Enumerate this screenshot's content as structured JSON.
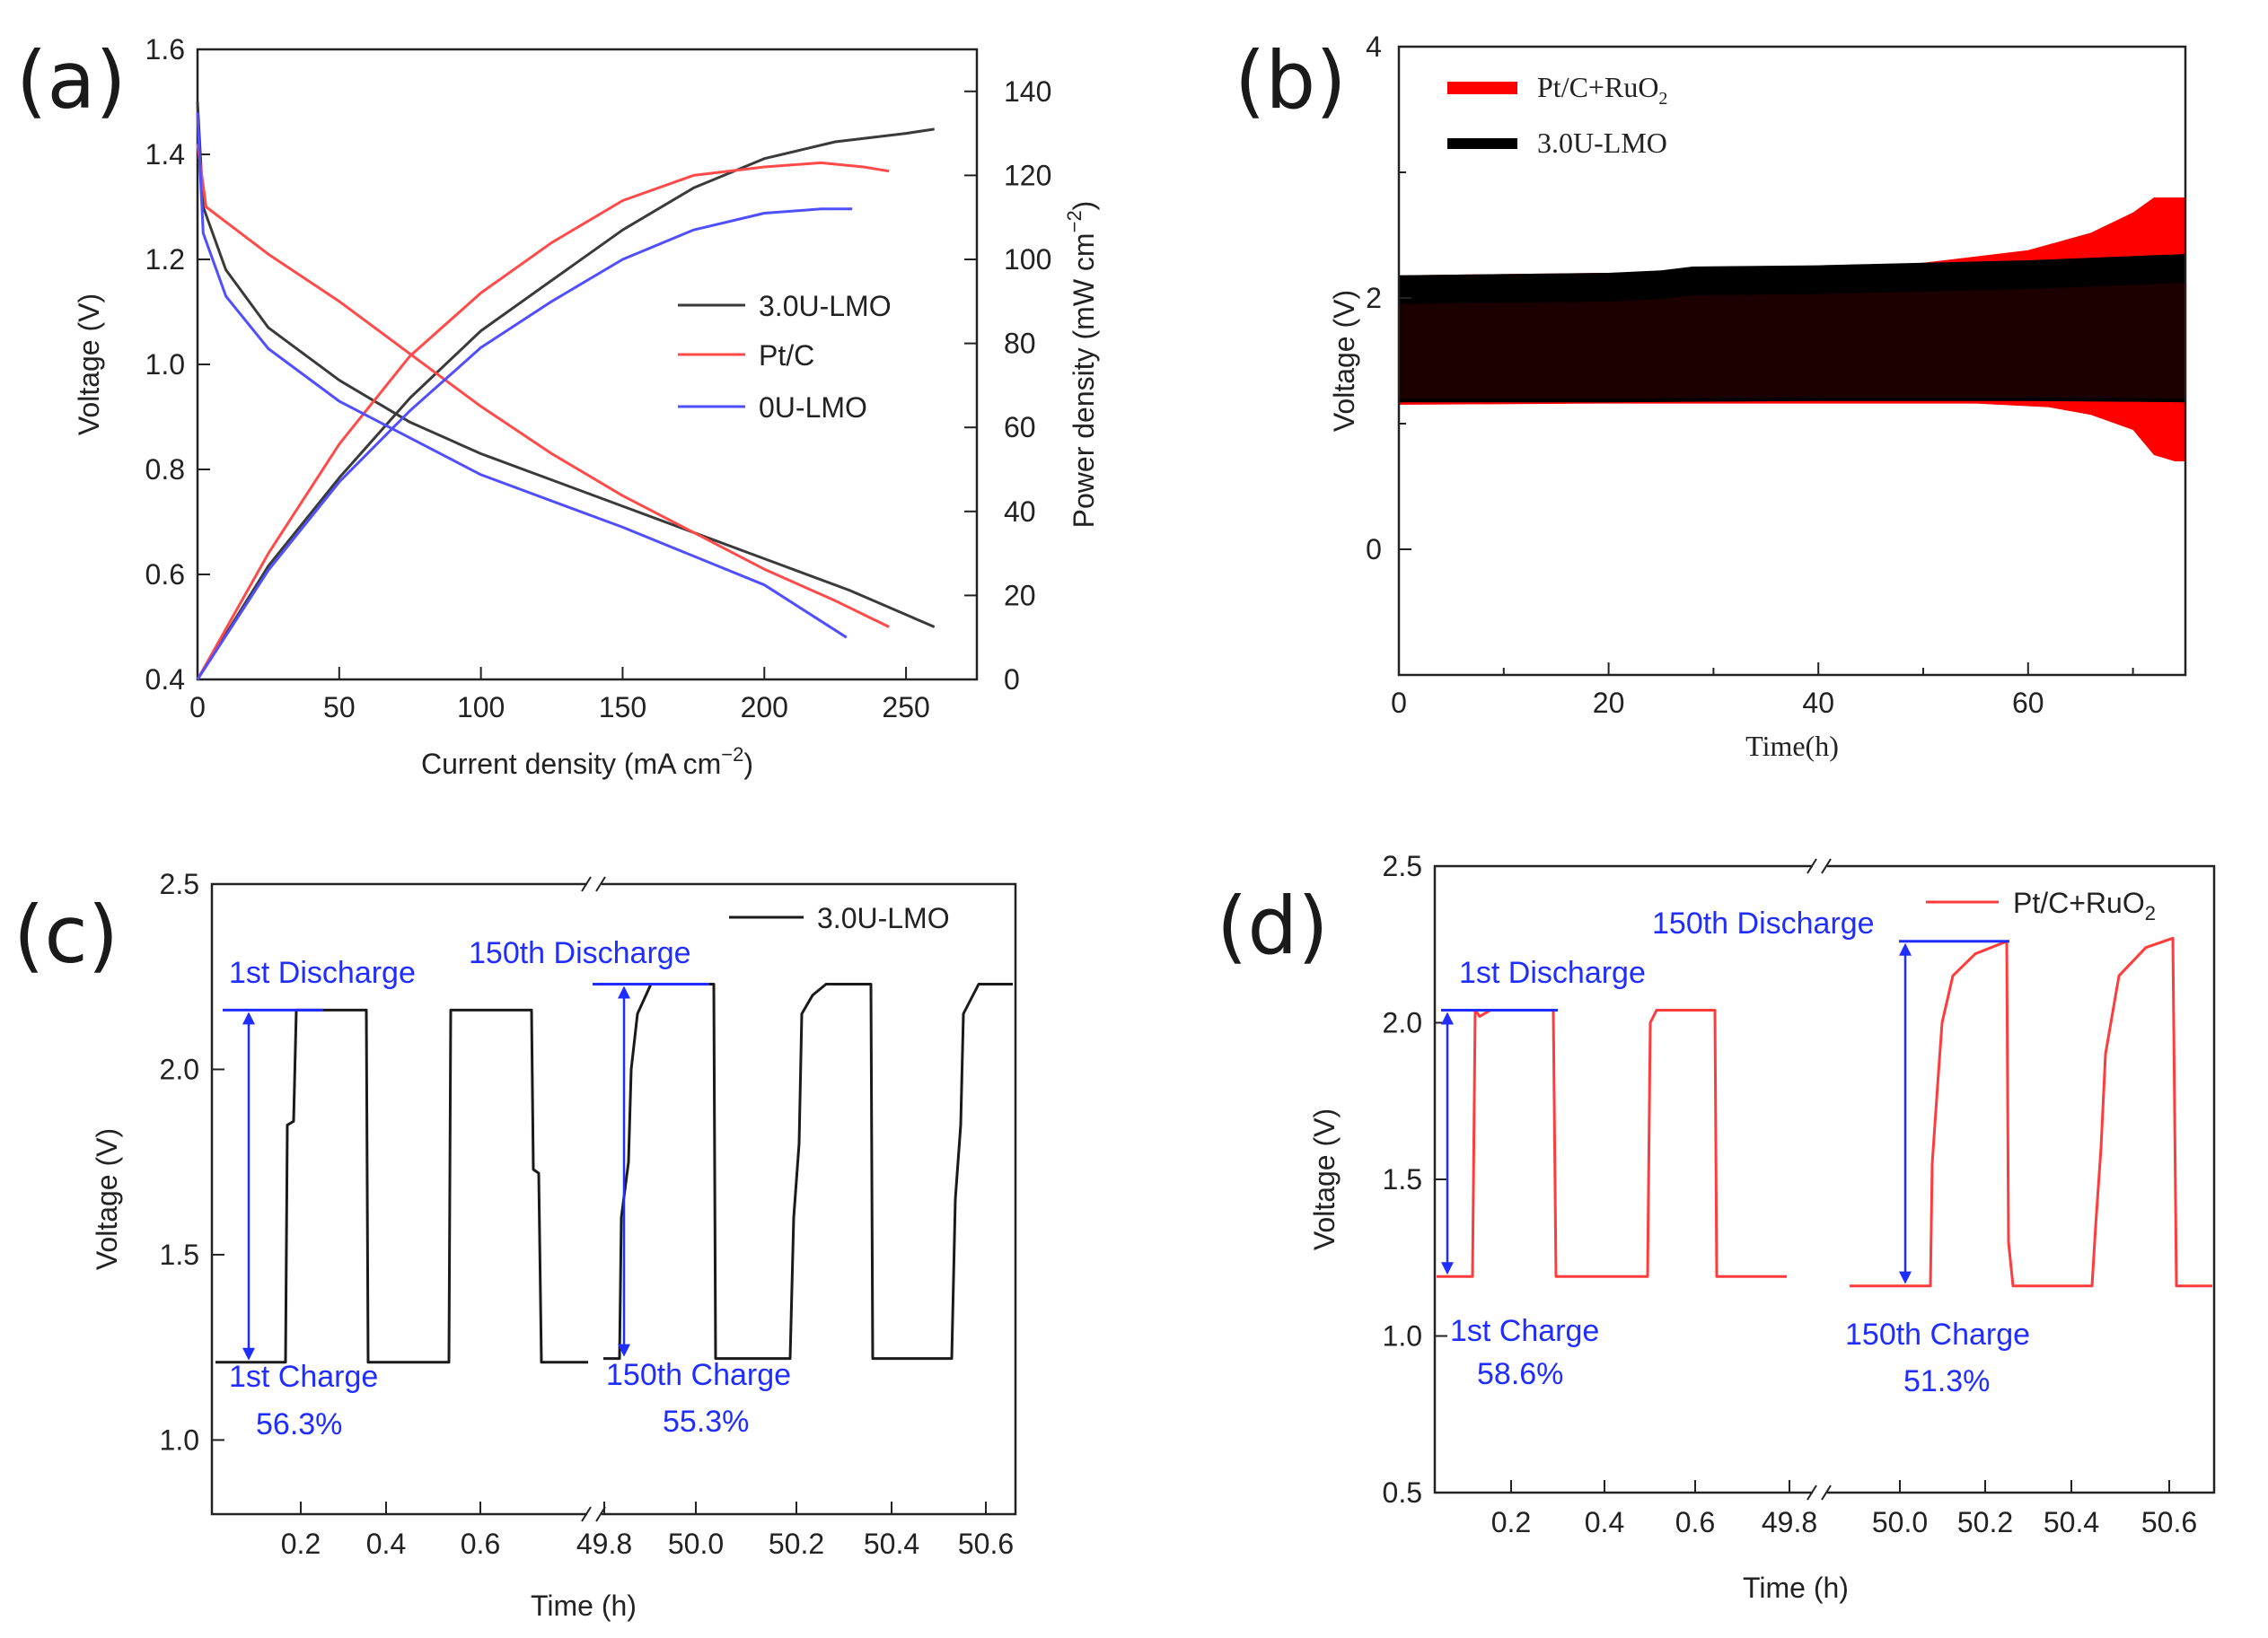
{
  "chart_data": [
    {
      "panel": "(a)",
      "type": "line",
      "xlabel": "Current density (mA cm",
      "xlabel_sup": "−2",
      "xlabel_end": ")",
      "ylabel": "Voltage (V)",
      "y2label": "Power density (mW cm",
      "y2label_sup": "−2",
      "y2label_end": ")",
      "xlim": [
        0,
        275
      ],
      "ylim": [
        0.4,
        1.6
      ],
      "y2lim": [
        0,
        150
      ],
      "xticks": [
        "0",
        "50",
        "100",
        "150",
        "200",
        "250"
      ],
      "yticks": [
        "0.4",
        "0.6",
        "0.8",
        "1.0",
        "1.2",
        "1.4",
        "1.6"
      ],
      "y2ticks": [
        "0",
        "20",
        "40",
        "60",
        "80",
        "100",
        "120",
        "140"
      ],
      "series": [
        {
          "name": "3.0U-LMO",
          "color": "#3a3a3a",
          "voltage": [
            [
              0,
              1.5
            ],
            [
              2,
              1.3
            ],
            [
              10,
              1.18
            ],
            [
              25,
              1.07
            ],
            [
              50,
              0.97
            ],
            [
              75,
              0.89
            ],
            [
              100,
              0.83
            ],
            [
              150,
              0.73
            ],
            [
              200,
              0.63
            ],
            [
              230,
              0.57
            ],
            [
              260,
              0.5
            ]
          ],
          "power": [
            [
              0,
              0
            ],
            [
              25,
              27
            ],
            [
              50,
              48
            ],
            [
              75,
              67
            ],
            [
              100,
              83
            ],
            [
              125,
              95
            ],
            [
              150,
              107
            ],
            [
              175,
              117
            ],
            [
              200,
              124
            ],
            [
              225,
              128
            ],
            [
              250,
              130
            ],
            [
              260,
              131
            ]
          ]
        },
        {
          "name": "Pt/C",
          "color": "#ff4a4a",
          "voltage": [
            [
              0,
              1.42
            ],
            [
              3,
              1.3
            ],
            [
              25,
              1.21
            ],
            [
              50,
              1.12
            ],
            [
              75,
              1.02
            ],
            [
              100,
              0.92
            ],
            [
              125,
              0.83
            ],
            [
              150,
              0.75
            ],
            [
              175,
              0.68
            ],
            [
              200,
              0.61
            ],
            [
              225,
              0.55
            ],
            [
              244,
              0.5
            ]
          ],
          "power": [
            [
              0,
              0
            ],
            [
              25,
              30
            ],
            [
              50,
              56
            ],
            [
              75,
              77
            ],
            [
              100,
              92
            ],
            [
              125,
              104
            ],
            [
              150,
              114
            ],
            [
              175,
              120
            ],
            [
              200,
              122
            ],
            [
              220,
              123
            ],
            [
              235,
              122
            ],
            [
              244,
              121
            ]
          ]
        },
        {
          "name": "0U-LMO",
          "color": "#4f4fff",
          "voltage": [
            [
              0,
              1.48
            ],
            [
              2,
              1.25
            ],
            [
              10,
              1.13
            ],
            [
              25,
              1.03
            ],
            [
              50,
              0.93
            ],
            [
              75,
              0.86
            ],
            [
              100,
              0.79
            ],
            [
              150,
              0.69
            ],
            [
              200,
              0.58
            ],
            [
              229,
              0.48
            ]
          ],
          "power": [
            [
              0,
              0
            ],
            [
              25,
              26
            ],
            [
              50,
              47
            ],
            [
              75,
              64
            ],
            [
              100,
              79
            ],
            [
              125,
              90
            ],
            [
              150,
              100
            ],
            [
              175,
              107
            ],
            [
              200,
              111
            ],
            [
              220,
              112
            ],
            [
              231,
              112
            ]
          ]
        }
      ]
    },
    {
      "panel": "(b)",
      "type": "area",
      "xlabel": "Time(h)",
      "ylabel": "Voltage (V)",
      "xlim": [
        0,
        75
      ],
      "ylim": [
        -1,
        4
      ],
      "xticks": [
        "0",
        "20",
        "40",
        "60"
      ],
      "yticks": [
        "0",
        "2",
        "4"
      ],
      "series": [
        {
          "name": "Pt/C+RuO",
          "name_sub": "2",
          "color": "#ff0000",
          "upper": [
            [
              0,
              2.18
            ],
            [
              20,
              2.2
            ],
            [
              40,
              2.24
            ],
            [
              50,
              2.28
            ],
            [
              60,
              2.38
            ],
            [
              66,
              2.52
            ],
            [
              70,
              2.68
            ],
            [
              72,
              2.8
            ],
            [
              75,
              2.8
            ]
          ],
          "lower": [
            [
              0,
              1.15
            ],
            [
              20,
              1.16
            ],
            [
              40,
              1.16
            ],
            [
              55,
              1.16
            ],
            [
              62,
              1.13
            ],
            [
              66,
              1.07
            ],
            [
              70,
              0.95
            ],
            [
              72,
              0.75
            ],
            [
              74,
              0.7
            ],
            [
              75,
              0.7
            ]
          ]
        },
        {
          "name": "3.0U-LMO",
          "color": "#000000",
          "upper": [
            [
              0,
              2.18
            ],
            [
              20,
              2.2
            ],
            [
              25,
              2.22
            ],
            [
              28,
              2.25
            ],
            [
              40,
              2.26
            ],
            [
              50,
              2.28
            ],
            [
              60,
              2.3
            ],
            [
              75,
              2.35
            ]
          ],
          "lower": [
            [
              0,
              1.17
            ],
            [
              20,
              1.17
            ],
            [
              40,
              1.18
            ],
            [
              60,
              1.18
            ],
            [
              75,
              1.17
            ]
          ]
        }
      ]
    },
    {
      "panel": "(c)",
      "type": "line",
      "xlabel": "Time (h)",
      "ylabel": "Voltage (V)",
      "ylim": [
        0.8,
        2.5
      ],
      "xticks_left": [
        "0.2",
        "0.4",
        "0.6"
      ],
      "xticks_right": [
        "49.8",
        "50.0",
        "50.2",
        "50.4",
        "50.6"
      ],
      "yticks": [
        "1.0",
        "1.5",
        "2.0",
        "2.5"
      ],
      "legend": "3.0U-LMO",
      "color": "#1a1a1a",
      "discharge_high": [
        2.16,
        2.23
      ],
      "charge_low": [
        1.21,
        1.22
      ],
      "annotations": {
        "first_discharge": "1st Discharge",
        "last_discharge": "150th Discharge",
        "first_charge": "1st Charge",
        "first_eff": "56.3%",
        "last_charge": "150th Charge",
        "last_eff": "55.3%"
      }
    },
    {
      "panel": "(d)",
      "type": "line",
      "xlabel": "Time (h)",
      "ylabel": "Voltage (V)",
      "ylim": [
        0.5,
        2.5
      ],
      "xticks_left": [
        "0.2",
        "0.4",
        "0.6"
      ],
      "xticks_right": [
        "49.8",
        "50.0",
        "50.2",
        "50.4",
        "50.6"
      ],
      "yticks": [
        "0.5",
        "1.0",
        "1.5",
        "2.0",
        "2.5"
      ],
      "legend": "Pt/C+RuO",
      "legend_sub": "2",
      "color": "#ff3b3b",
      "discharge_high": [
        2.04,
        2.26
      ],
      "charge_low": [
        1.19,
        1.16
      ],
      "annotations": {
        "first_discharge": "1st Discharge",
        "last_discharge": "150th Discharge",
        "first_charge": "1st Charge",
        "first_eff": "58.6%",
        "last_charge": "150th Charge",
        "last_eff": "51.3%"
      }
    }
  ]
}
